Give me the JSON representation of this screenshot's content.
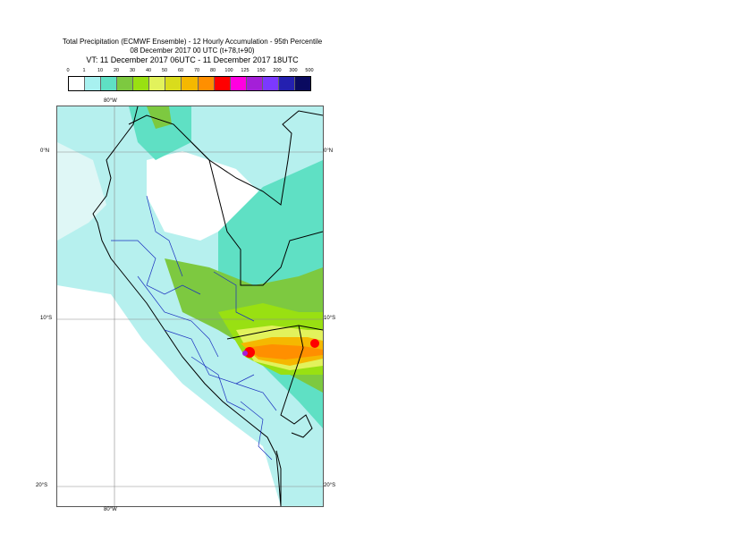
{
  "title": {
    "line1": "Total Precipitation (ECMWF Ensemble) - 12 Hourly Accumulation - 95th Percentile",
    "line2": "08 December 2017 00 UTC (t+78,t+90)",
    "line3": "VT: 11 December 2017 06UTC - 11 December 2017 18UTC"
  },
  "legend": {
    "ticks": [
      "0",
      "1",
      "10",
      "20",
      "30",
      "40",
      "50",
      "60",
      "70",
      "80",
      "100",
      "125",
      "150",
      "200",
      "300",
      "500"
    ],
    "colors": [
      "#ffffff",
      "#a8f1f0",
      "#5fe0c4",
      "#7dc940",
      "#99e012",
      "#e2f25c",
      "#d9dc1c",
      "#f5b800",
      "#ff8f00",
      "#ff0000",
      "#ff00e0",
      "#a41fd8",
      "#7b39ff",
      "#2420b0",
      "#0a0a60"
    ]
  },
  "map": {
    "labels": {
      "lon_top": "80°W",
      "lon_bottom": "80°W",
      "lat_0_left": "0°N",
      "lat_0_right": "0°N",
      "lat_10_left": "10°S",
      "lat_10_right": "10°S",
      "lat_20_left": "20°S",
      "lat_20_right": "20°S"
    }
  }
}
